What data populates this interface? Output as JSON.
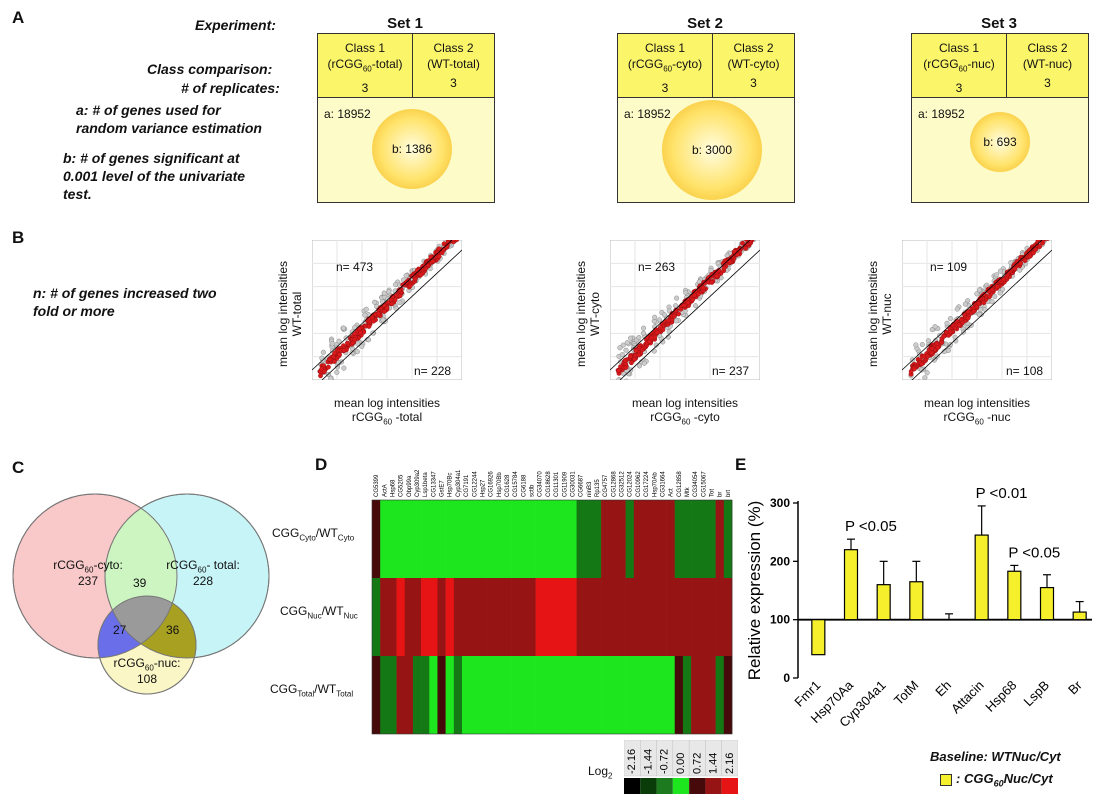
{
  "panelA": {
    "letter": "A",
    "experiment_label": "Experiment:",
    "class_comparison_label": "Class comparison:",
    "replicates_label": "# of replicates:",
    "a_desc": [
      "a: # of genes used for",
      "random variance estimation"
    ],
    "b_desc": [
      "b: # of genes significant at",
      "0.001 level of the univariate",
      "test."
    ],
    "sets": [
      {
        "title": "Set 1",
        "c1_line1": "Class 1",
        "c1_line2": "(rCGG60-total)",
        "c2_line1": "Class 2",
        "c2_line2": "(WT-total)",
        "rep1": "3",
        "rep2": "3",
        "a": "a: 18952",
        "b": "b: 1386"
      },
      {
        "title": "Set 2",
        "c1_line1": "Class 1",
        "c1_line2": "(rCGG60-cyto)",
        "c2_line1": "Class 2",
        "c2_line2": "(WT-cyto)",
        "rep1": "3",
        "rep2": "3",
        "a": "a: 18952",
        "b": "b: 3000"
      },
      {
        "title": "Set 3",
        "c1_line1": "Class 1",
        "c1_line2": "(rCGG60-nuc)",
        "c2_line1": "Class 2",
        "c2_line2": "(WT-nuc)",
        "rep1": "3",
        "rep2": "3",
        "a": "a: 18952",
        "b": "b: 693"
      }
    ]
  },
  "panelB": {
    "letter": "B",
    "n_desc": [
      "n: # of genes increased two",
      "fold or more"
    ],
    "ylabel": "mean log intensities",
    "xlabel": "mean log intensities",
    "plots": [
      {
        "ysub": "WT-total",
        "xsub_pre": "rCGG",
        "xsub_sub": "60",
        "xsub_post": " -total",
        "n_top": "n= 473",
        "n_bottom": "n= 228"
      },
      {
        "ysub": "WT-cyto",
        "xsub_pre": "rCGG",
        "xsub_sub": "60",
        "xsub_post": " -cyto",
        "n_top": "n= 263",
        "n_bottom": "n= 237"
      },
      {
        "ysub": "WT-nuc",
        "xsub_pre": "rCGG",
        "xsub_sub": "60",
        "xsub_post": " -nuc",
        "n_top": "n= 109",
        "n_bottom": "n= 108"
      }
    ]
  },
  "panelC": {
    "letter": "C",
    "cyto_label_pre": "rCGG",
    "cyto_label_sub": "60",
    "cyto_label_post": "-cyto:",
    "cyto_count": "237",
    "total_label_pre": "rCGG",
    "total_label_sub": "60",
    "total_label_post": "- total:",
    "total_count": "228",
    "nuc_label_pre": "rCGG",
    "nuc_label_sub": "60",
    "nuc_label_post": "-nuc:",
    "nuc_count": "108",
    "cyto_total": "39",
    "cyto_nuc": "27",
    "total_nuc": "36",
    "colors": {
      "cyto": "#f9c9c9",
      "total": "#c7f4f7",
      "nuc": "#fbf6c6",
      "cyto_total": "#cdf5c2",
      "cyto_nuc": "#6a6ee8",
      "total_nuc": "#a8a020",
      "center": "#9a9a9a"
    }
  },
  "panelD": {
    "letter": "D",
    "genes": [
      "CG5399",
      "ActA",
      "Hsp68",
      "CG5205",
      "Obp99a",
      "Cyp309a2",
      "Lsp1beta",
      "CG13347",
      "GstE7",
      "Hsp70Bc",
      "Cyp304a1",
      "CG7191",
      "CG12244",
      "Hsp27",
      "CG16926",
      "Hsp70Bb",
      "CG1628",
      "CG15784",
      "CG6188",
      "sctlb",
      "CG34070",
      "CG18628",
      "CG11301",
      "CG11909",
      "CG30031",
      "CG6687",
      "ninB3",
      "Rp135",
      "CG4757",
      "CG12868",
      "CG32512",
      "CG12024",
      "CG10962",
      "CG17224",
      "Hsp70Ab",
      "CG31664",
      "Act",
      "CG12858",
      "Mtk",
      "CG34054",
      "CG15067",
      "Tot",
      "br",
      "brt"
    ],
    "rows": [
      {
        "pre": "CGG",
        "sub": "Cyto",
        "mid": "/WT",
        "sub2": "Cyto"
      },
      {
        "pre": "CGG",
        "sub": "Nuc",
        "mid": "/WT",
        "sub2": "Nuc"
      },
      {
        "pre": "CGG",
        "sub": "Total",
        "mid": "/WT",
        "sub2": "Total"
      }
    ],
    "row_values": [
      [
        0.72,
        0.0,
        0.0,
        0.0,
        0.0,
        0.0,
        0.0,
        0.0,
        0.0,
        0.0,
        0.0,
        0.0,
        0.0,
        0.0,
        0.0,
        0.0,
        0.0,
        0.0,
        0.0,
        0.0,
        0.0,
        0.0,
        0.0,
        0.0,
        0.0,
        -0.72,
        -0.72,
        -0.72,
        1.44,
        1.44,
        1.44,
        -0.72,
        1.44,
        1.44,
        1.44,
        1.44,
        1.44,
        -0.72,
        -0.72,
        -0.72,
        -0.72,
        -0.72,
        1.44,
        -0.72
      ],
      [
        -0.72,
        1.44,
        1.44,
        2.16,
        1.44,
        1.44,
        2.16,
        2.16,
        1.44,
        2.16,
        1.44,
        1.44,
        1.44,
        1.44,
        1.44,
        1.44,
        1.44,
        1.44,
        1.44,
        1.44,
        2.16,
        2.16,
        2.16,
        2.16,
        2.16,
        1.44,
        1.44,
        1.44,
        1.44,
        1.44,
        1.44,
        1.44,
        1.44,
        1.44,
        1.44,
        1.44,
        1.44,
        1.44,
        1.44,
        1.44,
        1.44,
        1.44,
        1.44,
        1.44
      ],
      [
        0.72,
        -0.72,
        -0.72,
        1.44,
        1.44,
        -0.72,
        -0.72,
        0.0,
        0.72,
        0.0,
        -0.72,
        0.0,
        0.0,
        0.0,
        0.0,
        0.0,
        0.0,
        0.0,
        0.0,
        0.0,
        0.0,
        0.0,
        0.0,
        0.0,
        0.0,
        0.0,
        0.0,
        0.0,
        0.0,
        0.0,
        0.0,
        0.0,
        0.0,
        0.0,
        0.0,
        0.0,
        0.0,
        0.72,
        -0.72,
        1.44,
        1.44,
        1.44,
        -0.72,
        0.72
      ]
    ],
    "legend_values": [
      "-2.16",
      "-1.44",
      "-0.72",
      "0.00",
      "0.72",
      "1.44",
      "2.16"
    ],
    "legend_label_pre": "Log",
    "legend_label_sub": "2"
  },
  "panelE": {
    "letter": "E",
    "baseline_pre": "Baseline: ",
    "baseline_post": "WTNuc/Cyt",
    "legend_pre": ": CGG",
    "legend_sub": "60",
    "legend_post": "Nuc/Cyt"
  },
  "chart_data": {
    "type": "bar",
    "categories": [
      "Fmr1",
      "Hsp70Aa",
      "Cyp304a1",
      "TotM",
      "Eh",
      "Attacin",
      "Hsp68",
      "LspB",
      "Br"
    ],
    "values": [
      40,
      220,
      160,
      165,
      100,
      245,
      183,
      155,
      113
    ],
    "errors": [
      0,
      18,
      40,
      35,
      10,
      50,
      10,
      22,
      18
    ],
    "annotations": [
      {
        "category": "Hsp70Aa",
        "text": "P <0.05"
      },
      {
        "category": "Attacin",
        "text": "P <0.01"
      },
      {
        "category": "Hsp68",
        "text": "P <0.05"
      }
    ],
    "ylabel": "Relative expression (%)",
    "ylim": [
      0,
      300
    ],
    "yticks": [
      0,
      100,
      200,
      300
    ],
    "baseline": 100,
    "bar_color": "#f5ef2c"
  }
}
